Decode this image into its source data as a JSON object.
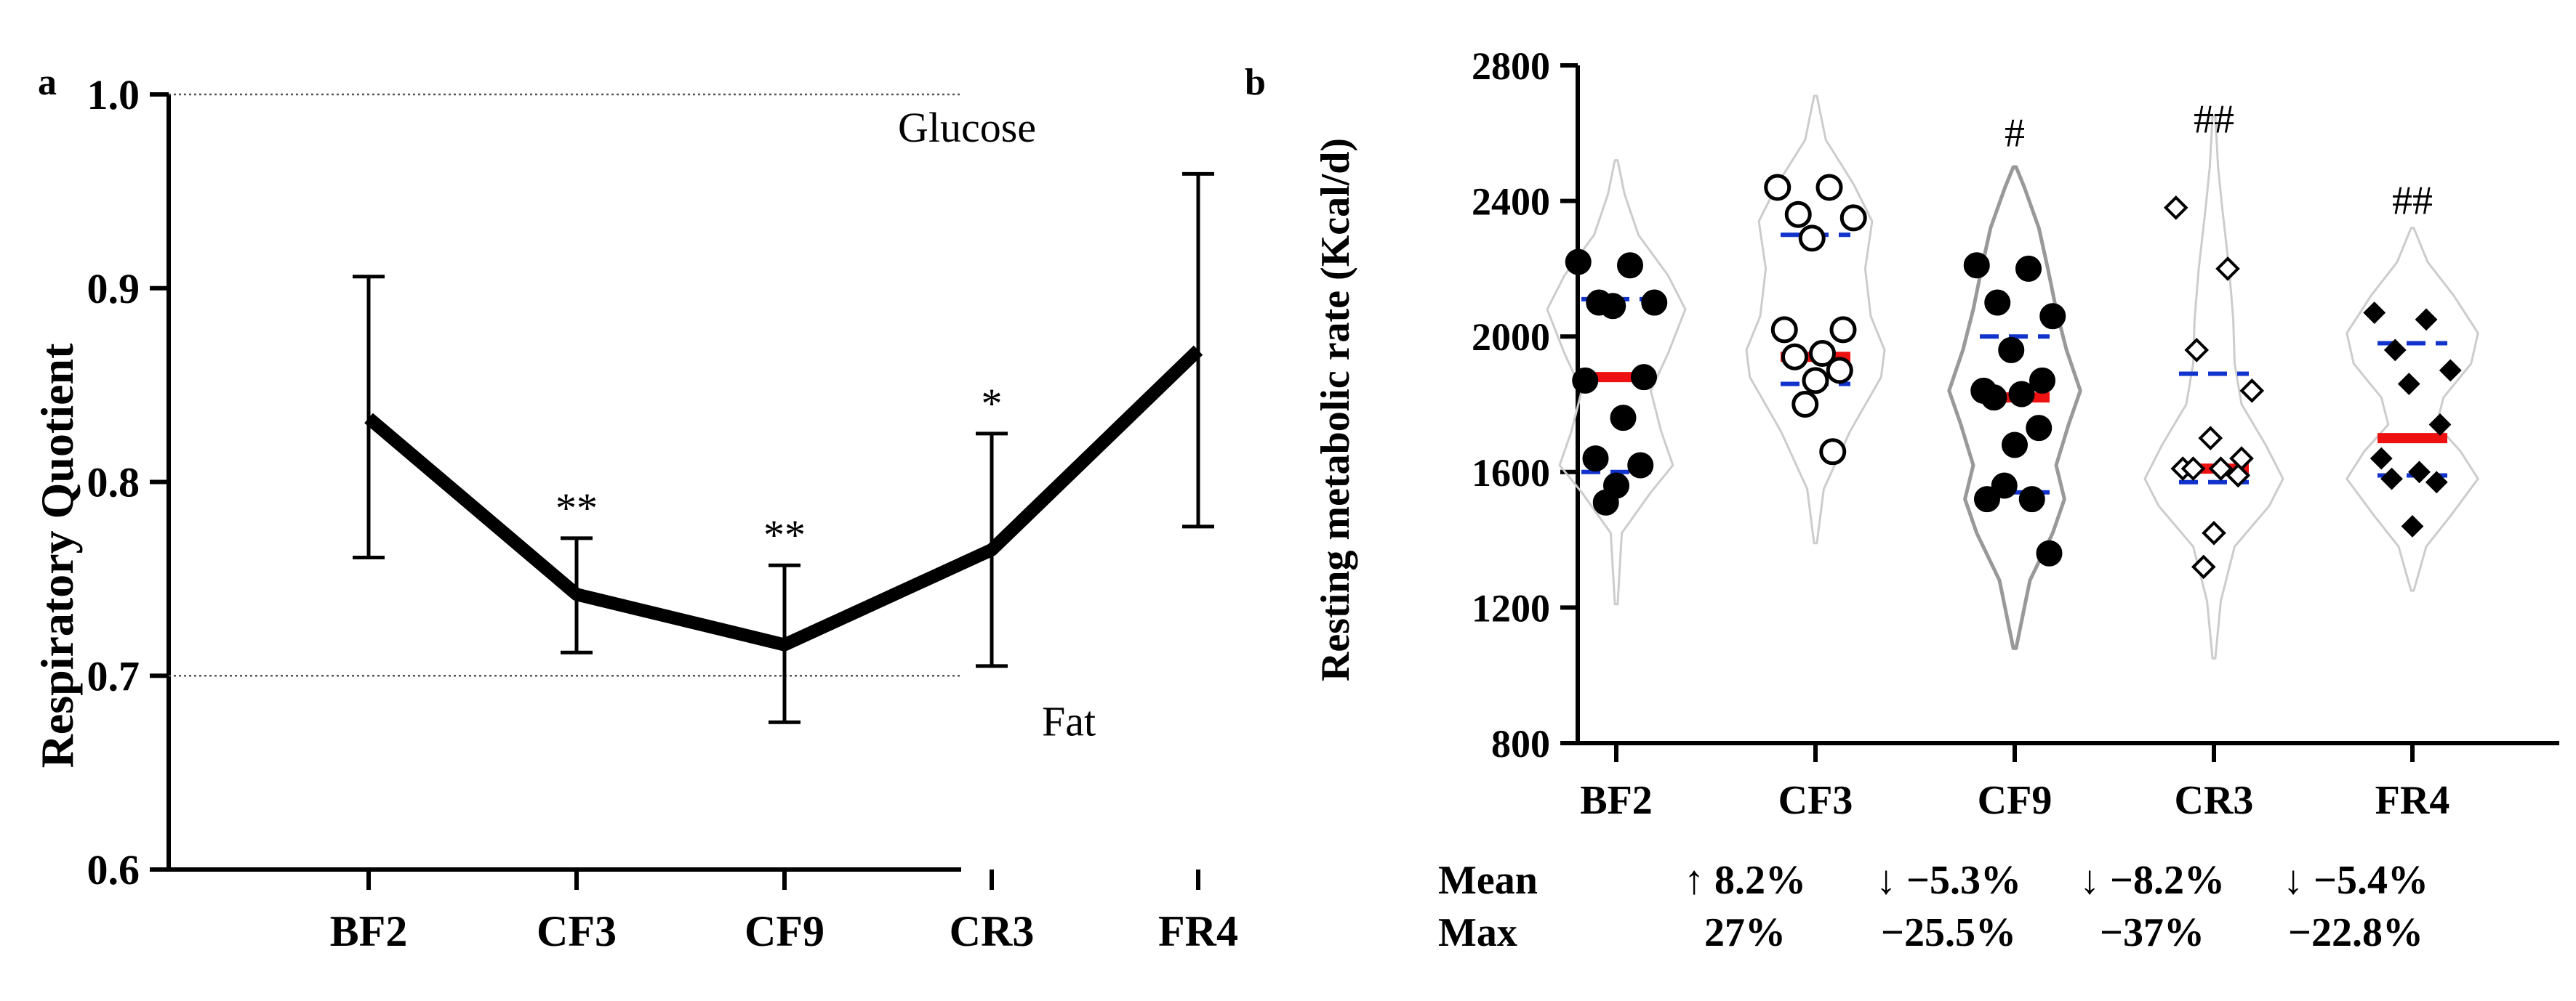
{
  "chart_data": [
    {
      "panel": "a",
      "type": "line",
      "ylabel": "Respiratory Quotient",
      "ylim": [
        0.6,
        1.0
      ],
      "yticks": [
        "0.6",
        "0.7",
        "0.8",
        "0.9",
        "1.0"
      ],
      "categories": [
        "BF2",
        "CF3",
        "CF9",
        "CR3",
        "FR4"
      ],
      "series": [
        {
          "name": "RQ",
          "values": [
            0.833,
            0.742,
            0.716,
            0.765,
            0.868
          ],
          "err_low": [
            0.761,
            0.712,
            0.676,
            0.705,
            0.777
          ],
          "err_high": [
            0.906,
            0.771,
            0.757,
            0.825,
            0.959
          ]
        }
      ],
      "significance": [
        "",
        "**",
        "**",
        "*",
        ""
      ],
      "reference_lines": [
        {
          "value": 1.0,
          "label": "Glucose"
        },
        {
          "value": 0.7,
          "label": "Fat"
        }
      ]
    },
    {
      "panel": "b",
      "type": "violin",
      "ylabel": "Resting metabolic rate (Kcal/d)",
      "ylim": [
        800,
        2800
      ],
      "yticks": [
        "800",
        "1200",
        "1600",
        "2000",
        "2400",
        "2800"
      ],
      "categories": [
        "BF2",
        "CF3",
        "CF9",
        "CR3",
        "FR4"
      ],
      "markers": [
        "filled-circle",
        "open-circle",
        "filled-circle",
        "diamond",
        "diamond"
      ],
      "groups": [
        {
          "name": "BF2",
          "median": 1880,
          "q1": 1600,
          "q3": 2110,
          "points": [
            2220,
            2210,
            2100,
            2100,
            2090,
            1880,
            1870,
            1760,
            1640,
            1620,
            1560,
            1510
          ],
          "violin": [
            [
              1210,
              0.02
            ],
            [
              1420,
              0.08
            ],
            [
              1540,
              0.5
            ],
            [
              1620,
              0.82
            ],
            [
              1720,
              0.65
            ],
            [
              1840,
              0.5
            ],
            [
              1950,
              0.75
            ],
            [
              2080,
              1.0
            ],
            [
              2180,
              0.75
            ],
            [
              2300,
              0.32
            ],
            [
              2420,
              0.12
            ],
            [
              2520,
              0.02
            ]
          ]
        },
        {
          "name": "CF3",
          "median": 1940,
          "q1": 1860,
          "q3": 2300,
          "points": [
            2440,
            2440,
            2360,
            2350,
            2290,
            2020,
            2020,
            1950,
            1940,
            1900,
            1870,
            1800,
            1660
          ],
          "violin": [
            [
              1390,
              0.02
            ],
            [
              1550,
              0.12
            ],
            [
              1720,
              0.5
            ],
            [
              1880,
              0.95
            ],
            [
              1960,
              1.0
            ],
            [
              2060,
              0.8
            ],
            [
              2200,
              0.72
            ],
            [
              2340,
              0.82
            ],
            [
              2450,
              0.55
            ],
            [
              2580,
              0.15
            ],
            [
              2710,
              0.02
            ]
          ]
        },
        {
          "name": "CF9",
          "median": 1820,
          "q1": 1540,
          "q3": 2000,
          "points": [
            2210,
            2200,
            2100,
            2060,
            1960,
            1870,
            1840,
            1830,
            1820,
            1730,
            1680,
            1560,
            1520,
            1520,
            1360
          ],
          "violin": [
            [
              1080,
              0.02
            ],
            [
              1280,
              0.22
            ],
            [
              1420,
              0.55
            ],
            [
              1520,
              0.72
            ],
            [
              1620,
              0.6
            ],
            [
              1740,
              0.78
            ],
            [
              1840,
              0.95
            ],
            [
              1960,
              0.75
            ],
            [
              2080,
              0.6
            ],
            [
              2200,
              0.48
            ],
            [
              2320,
              0.35
            ],
            [
              2440,
              0.14
            ],
            [
              2500,
              0.02
            ]
          ]
        },
        {
          "name": "CR3",
          "median": 1610,
          "q1": 1570,
          "q3": 1890,
          "points": [
            2380,
            2200,
            1960,
            1840,
            1700,
            1640,
            1610,
            1610,
            1610,
            1590,
            1420,
            1320
          ],
          "violin": [
            [
              1050,
              0.02
            ],
            [
              1220,
              0.1
            ],
            [
              1380,
              0.3
            ],
            [
              1500,
              0.8
            ],
            [
              1580,
              1.0
            ],
            [
              1680,
              0.75
            ],
            [
              1800,
              0.4
            ],
            [
              1920,
              0.3
            ],
            [
              2050,
              0.28
            ],
            [
              2200,
              0.22
            ],
            [
              2380,
              0.12
            ],
            [
              2500,
              0.06
            ],
            [
              2650,
              0.02
            ]
          ]
        },
        {
          "name": "FR4",
          "median": 1700,
          "q1": 1590,
          "q3": 1980,
          "points": [
            2070,
            2050,
            1960,
            1900,
            1860,
            1740,
            1640,
            1600,
            1580,
            1570,
            1440
          ],
          "violin": [
            [
              1250,
              0.02
            ],
            [
              1380,
              0.2
            ],
            [
              1470,
              0.55
            ],
            [
              1580,
              0.95
            ],
            [
              1660,
              0.7
            ],
            [
              1740,
              0.35
            ],
            [
              1820,
              0.45
            ],
            [
              1920,
              0.85
            ],
            [
              2010,
              0.95
            ],
            [
              2120,
              0.6
            ],
            [
              2220,
              0.22
            ],
            [
              2320,
              0.02
            ]
          ]
        }
      ],
      "significance": [
        "",
        "",
        "#",
        "##",
        "##"
      ],
      "stats_table": {
        "rows": [
          {
            "label": "Mean",
            "values": [
              "↑ 8.2%",
              "↓ −5.3%",
              "↓ −8.2%",
              "↓ −5.4%"
            ]
          },
          {
            "label": "Max",
            "values": [
              "27%",
              "−25.5%",
              "−37%",
              "−22.8%"
            ]
          }
        ]
      }
    }
  ],
  "colors": {
    "axis": "#000000",
    "line": "#000000",
    "reference_line": "#555555",
    "violin_outline": "#cccccc",
    "violin_outline_dark": "#999999",
    "median": "#ee1111",
    "quartile": "#1133cc"
  }
}
